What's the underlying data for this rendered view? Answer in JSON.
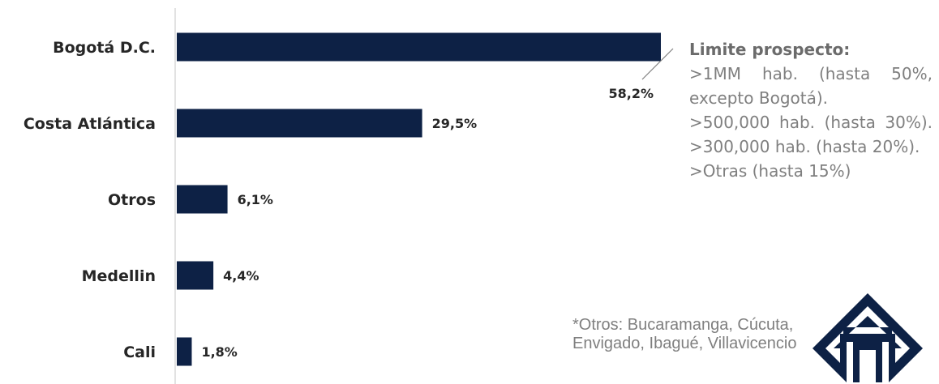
{
  "chart_data": {
    "type": "bar",
    "orientation": "horizontal",
    "categories": [
      "Bogotá D.C.",
      "Costa Atlántica",
      "Otros",
      "Medellin",
      "Cali"
    ],
    "values": [
      58.2,
      29.5,
      6.1,
      4.4,
      1.8
    ],
    "value_labels": [
      "58,2%",
      "29,5%",
      "6,1%",
      "4,4%",
      "1,8%"
    ],
    "xlim": [
      0,
      58.2
    ],
    "grid": false,
    "bar_color": "#0d2145"
  },
  "notes": {
    "title": "Limite prospecto:",
    "lines": [
      ">1MM hab. (hasta 50%, excepto Bogotá).",
      ">500,000 hab. (hasta 30%). >300,000 hab. (hasta 20%).",
      ">Otras (hasta 15%)"
    ]
  },
  "footnote": "*Otros: Bucaramanga, Cúcuta, Envigado, Ibagué, Villavicencio",
  "logo": {
    "icon": "arrow-diamond-logo",
    "color": "#0d2145"
  }
}
